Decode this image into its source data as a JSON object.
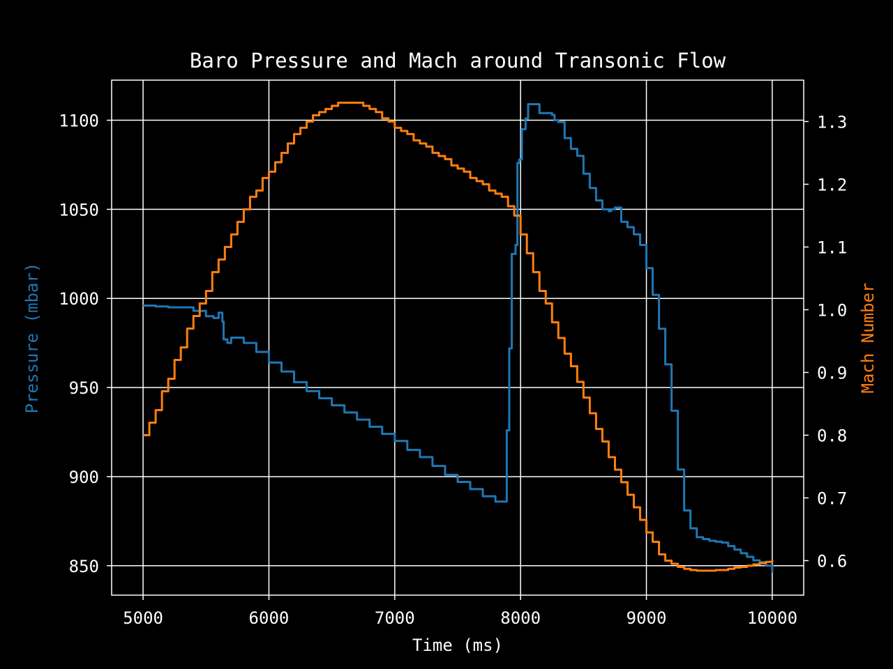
{
  "chart_data": {
    "type": "line",
    "title": "Baro Pressure and Mach around Transonic Flow",
    "xlabel": "Time (ms)",
    "ylabel_left": "Pressure (mbar)",
    "ylabel_right": "Mach Number",
    "xlim": [
      4750,
      10250
    ],
    "ylim_left": [
      833.5,
      1122.5
    ],
    "ylim_right": [
      0.545,
      1.366
    ],
    "xticks": [
      5000,
      6000,
      7000,
      8000,
      9000,
      10000
    ],
    "yticks_left": [
      850,
      900,
      950,
      1000,
      1050,
      1100
    ],
    "yticks_right": [
      "0.6",
      "0.7",
      "0.8",
      "0.9",
      "1.0",
      "1.1",
      "1.2",
      "1.3"
    ],
    "grid": true,
    "background": "#000000",
    "foreground": "#ffffff",
    "series": [
      {
        "name": "Pressure (mbar)",
        "axis": "left",
        "color": "#1f77b4",
        "points": [
          [
            5000,
            996
          ],
          [
            5100,
            995.5
          ],
          [
            5200,
            995
          ],
          [
            5300,
            995
          ],
          [
            5400,
            993
          ],
          [
            5500,
            990
          ],
          [
            5560,
            989
          ],
          [
            5600,
            992
          ],
          [
            5630,
            987
          ],
          [
            5640,
            977
          ],
          [
            5670,
            975
          ],
          [
            5700,
            978
          ],
          [
            5750,
            978
          ],
          [
            5800,
            975
          ],
          [
            5900,
            970
          ],
          [
            6000,
            964
          ],
          [
            6100,
            959
          ],
          [
            6200,
            953
          ],
          [
            6300,
            948
          ],
          [
            6400,
            944
          ],
          [
            6500,
            940
          ],
          [
            6600,
            936
          ],
          [
            6700,
            932
          ],
          [
            6800,
            928
          ],
          [
            6900,
            924
          ],
          [
            7000,
            920
          ],
          [
            7100,
            915
          ],
          [
            7200,
            911
          ],
          [
            7300,
            906
          ],
          [
            7400,
            901
          ],
          [
            7500,
            897
          ],
          [
            7600,
            893
          ],
          [
            7700,
            889
          ],
          [
            7800,
            886
          ],
          [
            7870,
            886
          ],
          [
            7890,
            926
          ],
          [
            7910,
            972
          ],
          [
            7930,
            1025
          ],
          [
            7960,
            1030
          ],
          [
            7975,
            1076
          ],
          [
            7990,
            1078
          ],
          [
            8010,
            1095
          ],
          [
            8040,
            1101
          ],
          [
            8060,
            1109
          ],
          [
            8140,
            1109
          ],
          [
            8150,
            1104
          ],
          [
            8250,
            1103
          ],
          [
            8270,
            1100
          ],
          [
            8300,
            1099
          ],
          [
            8350,
            1090
          ],
          [
            8400,
            1084
          ],
          [
            8450,
            1080
          ],
          [
            8500,
            1070
          ],
          [
            8550,
            1062
          ],
          [
            8600,
            1055
          ],
          [
            8650,
            1050
          ],
          [
            8700,
            1049
          ],
          [
            8720,
            1050
          ],
          [
            8750,
            1051
          ],
          [
            8800,
            1043
          ],
          [
            8850,
            1040
          ],
          [
            8900,
            1036
          ],
          [
            8950,
            1030
          ],
          [
            9000,
            1017
          ],
          [
            9050,
            1002
          ],
          [
            9100,
            983
          ],
          [
            9150,
            963
          ],
          [
            9200,
            937
          ],
          [
            9250,
            904
          ],
          [
            9300,
            881
          ],
          [
            9350,
            871
          ],
          [
            9400,
            866
          ],
          [
            9450,
            865
          ],
          [
            9500,
            864
          ],
          [
            9550,
            863.5
          ],
          [
            9600,
            863
          ],
          [
            9650,
            861
          ],
          [
            9700,
            859
          ],
          [
            9750,
            857
          ],
          [
            9800,
            855
          ],
          [
            9850,
            853
          ],
          [
            9900,
            852
          ],
          [
            9950,
            850
          ],
          [
            10000,
            846
          ]
        ]
      },
      {
        "name": "Mach Number",
        "axis": "right",
        "color": "#ff7f0e",
        "points": [
          [
            5000,
            0.8
          ],
          [
            5050,
            0.82
          ],
          [
            5100,
            0.84
          ],
          [
            5150,
            0.87
          ],
          [
            5200,
            0.89
          ],
          [
            5250,
            0.92
          ],
          [
            5300,
            0.94
          ],
          [
            5350,
            0.97
          ],
          [
            5400,
            0.99
          ],
          [
            5450,
            1.01
          ],
          [
            5500,
            1.03
          ],
          [
            5550,
            1.06
          ],
          [
            5600,
            1.08
          ],
          [
            5650,
            1.1
          ],
          [
            5700,
            1.12
          ],
          [
            5750,
            1.14
          ],
          [
            5800,
            1.16
          ],
          [
            5850,
            1.18
          ],
          [
            5900,
            1.19
          ],
          [
            5950,
            1.21
          ],
          [
            6000,
            1.22
          ],
          [
            6050,
            1.235
          ],
          [
            6100,
            1.25
          ],
          [
            6150,
            1.265
          ],
          [
            6200,
            1.28
          ],
          [
            6250,
            1.29
          ],
          [
            6300,
            1.3
          ],
          [
            6350,
            1.31
          ],
          [
            6400,
            1.315
          ],
          [
            6450,
            1.32
          ],
          [
            6500,
            1.325
          ],
          [
            6550,
            1.33
          ],
          [
            6600,
            1.33
          ],
          [
            6650,
            1.33
          ],
          [
            6700,
            1.33
          ],
          [
            6750,
            1.325
          ],
          [
            6800,
            1.32
          ],
          [
            6850,
            1.315
          ],
          [
            6900,
            1.305
          ],
          [
            6950,
            1.3
          ],
          [
            7000,
            1.29
          ],
          [
            7050,
            1.285
          ],
          [
            7100,
            1.28
          ],
          [
            7150,
            1.27
          ],
          [
            7200,
            1.265
          ],
          [
            7250,
            1.26
          ],
          [
            7300,
            1.25
          ],
          [
            7350,
            1.245
          ],
          [
            7400,
            1.24
          ],
          [
            7450,
            1.23
          ],
          [
            7500,
            1.225
          ],
          [
            7550,
            1.22
          ],
          [
            7600,
            1.21
          ],
          [
            7650,
            1.205
          ],
          [
            7700,
            1.2
          ],
          [
            7750,
            1.19
          ],
          [
            7800,
            1.185
          ],
          [
            7850,
            1.18
          ],
          [
            7900,
            1.165
          ],
          [
            7950,
            1.15
          ],
          [
            8000,
            1.12
          ],
          [
            8050,
            1.09
          ],
          [
            8100,
            1.06
          ],
          [
            8150,
            1.03
          ],
          [
            8200,
            1.01
          ],
          [
            8250,
            0.98
          ],
          [
            8300,
            0.955
          ],
          [
            8350,
            0.93
          ],
          [
            8400,
            0.91
          ],
          [
            8450,
            0.885
          ],
          [
            8500,
            0.86
          ],
          [
            8550,
            0.835
          ],
          [
            8600,
            0.81
          ],
          [
            8650,
            0.79
          ],
          [
            8700,
            0.765
          ],
          [
            8750,
            0.745
          ],
          [
            8800,
            0.725
          ],
          [
            8850,
            0.705
          ],
          [
            8900,
            0.685
          ],
          [
            8950,
            0.665
          ],
          [
            9000,
            0.645
          ],
          [
            9050,
            0.63
          ],
          [
            9100,
            0.61
          ],
          [
            9150,
            0.6
          ],
          [
            9200,
            0.595
          ],
          [
            9250,
            0.59
          ],
          [
            9300,
            0.587
          ],
          [
            9350,
            0.585
          ],
          [
            9400,
            0.584
          ],
          [
            9450,
            0.584
          ],
          [
            9500,
            0.584
          ],
          [
            9550,
            0.585
          ],
          [
            9600,
            0.585
          ],
          [
            9650,
            0.587
          ],
          [
            9700,
            0.589
          ],
          [
            9750,
            0.59
          ],
          [
            9800,
            0.592
          ],
          [
            9850,
            0.594
          ],
          [
            9900,
            0.596
          ],
          [
            9950,
            0.598
          ],
          [
            10000,
            0.601
          ]
        ]
      }
    ]
  }
}
